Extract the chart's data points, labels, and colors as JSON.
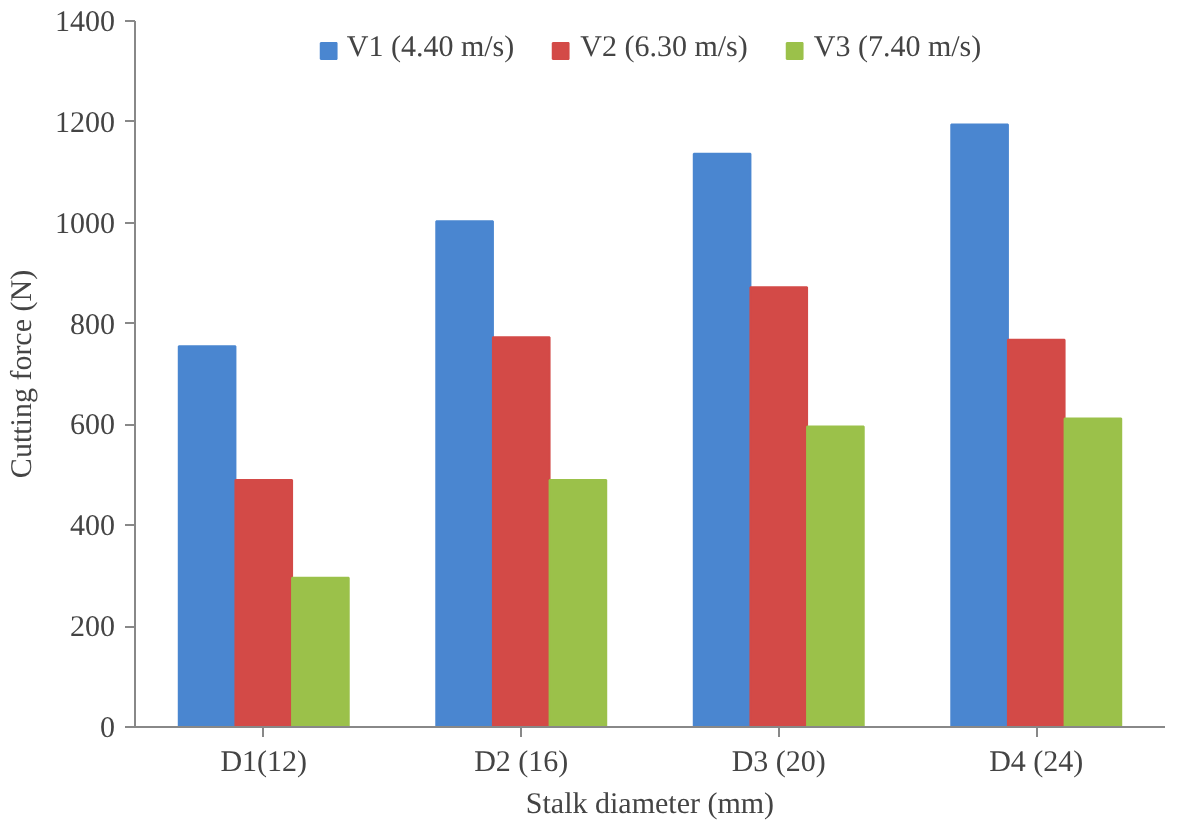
{
  "chart_data": {
    "type": "bar",
    "xlabel": "Stalk diameter (mm)",
    "ylabel": "Cutting force (N)",
    "categories": [
      "D1(12)",
      "D2 (16)",
      "D3 (20)",
      "D4 (24)"
    ],
    "series": [
      {
        "name": "V1 (4.40 m/s)",
        "color": "#4a86d0",
        "values": [
          755,
          1003,
          1137,
          1195
        ]
      },
      {
        "name": "V2 (6.30 m/s)",
        "color": "#d34a47",
        "values": [
          490,
          773,
          872,
          768
        ]
      },
      {
        "name": "V3 (7.40 m/s)",
        "color": "#9bc14a",
        "values": [
          296,
          490,
          596,
          612
        ]
      }
    ],
    "ylim": [
      0,
      1400
    ],
    "yticks": [
      0,
      200,
      400,
      600,
      800,
      1000,
      1200,
      1400
    ],
    "grid": false,
    "legend": "top"
  }
}
